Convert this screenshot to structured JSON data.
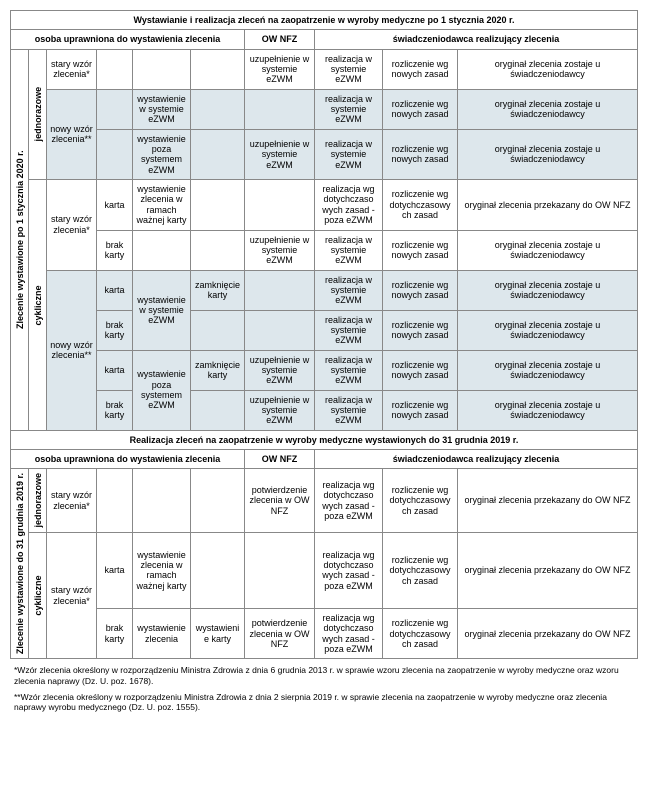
{
  "title1": "Wystawianie i realizacja zleceń na zaopatrzenie w wyroby medyczne po 1 stycznia 2020 r.",
  "title2": "Realizacja zleceń na zaopatrzenie w wyroby medyczne wystawionych do 31 grudnia 2019 r.",
  "col_osoba": "osoba uprawniona do wystawienia zlecenia",
  "col_ownfz": "OW NFZ",
  "col_swiad": "świadczeniodawca realizujący zlecenia",
  "side1": "Zlecenie wystawione po 1 stycznia 2020 r.",
  "side2": "Zlecenie wystawione do 31 grudnia 2019 r.",
  "jednorazowe": "jednorazowe",
  "cykliczne": "cykliczne",
  "stary_wzor": "stary wzór zlecenia*",
  "nowy_wzor": "nowy wzór zlecenia**",
  "karta": "karta",
  "brak_karty": "brak karty",
  "wyst_ezwm": "wystawienie w systemie eZWM",
  "wyst_poza": "wystawienie poza systemem eZWM",
  "wyst_ramach": "wystawienie zlecenia w ramach ważnej karty",
  "wyst_zlecenia": "wystawienie zlecenia",
  "zamk_karty": "zamknięcie karty",
  "wyst_e_karty": "wystawieni e karty",
  "uzup_ezwm": "uzupełnienie w systemie eZWM",
  "potw_ownfz": "potwierdzenie zlecenia w OW NFZ",
  "real_ezwm": "realizacja w systemie eZWM",
  "real_dotych": "realizacja wg dotychczaso wych zasad - poza eZWM",
  "rozl_nowych": "rozliczenie wg nowych zasad",
  "rozl_dotych": "rozliczenie wg dotychczasowy ch zasad",
  "rozl_dotych2": "rozliczenie wg dotychczasowy ch  zasad",
  "oryg_swiad": "oryginał zlecenia zostaje u świadczeniodawcy",
  "oryg_ownfz": "oryginał zlecenia przekazany do OW NFZ",
  "foot1": "*Wzór zlecenia określony w rozporządzeniu Ministra Zdrowia z dnia 6 grudnia 2013 r. w sprawie wzoru zlecenia na zaopatrzenie w wyroby medyczne oraz wzoru zlecenia naprawy (Dz. U. poz. 1678).",
  "foot2": "**Wzór zlecenia określony w rozporządzeniu Ministra Zdrowia z dnia 2 sierpnia 2019 r. w sprawie zlecenia na zaopatrzenie w wyroby medyczne oraz zlecenia naprawy wyrobu medycznego (Dz. U. poz. 1555)."
}
